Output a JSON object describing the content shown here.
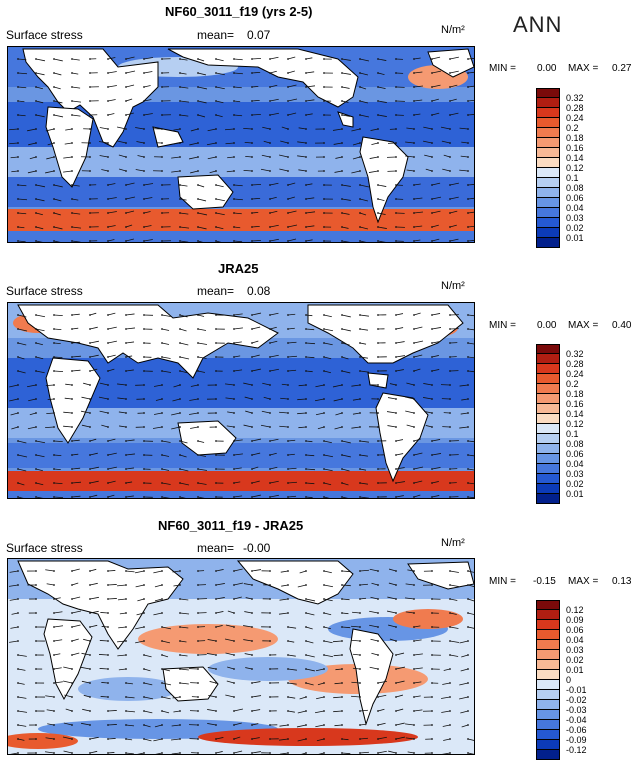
{
  "season": "ANN",
  "panels": [
    {
      "title": "NF60_3011_f19 (yrs 2-5)",
      "variable": "Surface stress",
      "mean_label": "mean=",
      "mean_value": "0.07",
      "units": "N/m²",
      "min_label": "MIN =",
      "min_value": "0.00",
      "max_label": "MAX =",
      "max_value": "0.27",
      "colorbar_ticks": [
        "0.32",
        "0.28",
        "0.24",
        "0.2",
        "0.18",
        "0.16",
        "0.14",
        "0.12",
        "0.1",
        "0.08",
        "0.06",
        "0.04",
        "0.03",
        "0.02",
        "0.01"
      ]
    },
    {
      "title": "JRA25",
      "variable": "Surface stress",
      "mean_label": "mean=",
      "mean_value": "0.08",
      "units": "N/m²",
      "min_label": "MIN =",
      "min_value": "0.00",
      "max_label": "MAX =",
      "max_value": "0.40",
      "colorbar_ticks": [
        "0.32",
        "0.28",
        "0.24",
        "0.2",
        "0.18",
        "0.16",
        "0.14",
        "0.12",
        "0.1",
        "0.08",
        "0.06",
        "0.04",
        "0.03",
        "0.02",
        "0.01"
      ]
    },
    {
      "title": "NF60_3011_f19 - JRA25",
      "variable": "Surface stress",
      "mean_label": "mean=",
      "mean_value": "-0.00",
      "units": "N/m²",
      "min_label": "MIN =",
      "min_value": "-0.15",
      "max_label": "MAX =",
      "max_value": "0.13",
      "colorbar_ticks": [
        "0.12",
        "0.09",
        "0.06",
        "0.04",
        "0.03",
        "0.02",
        "0.01",
        "0",
        "-0.01",
        "-0.02",
        "-0.03",
        "-0.04",
        "-0.06",
        "-0.09",
        "-0.12"
      ]
    }
  ],
  "colors": {
    "colorbar": [
      "#7a0a0a",
      "#b01e12",
      "#d8381d",
      "#e85a2e",
      "#f07b4f",
      "#f59a72",
      "#f8b996",
      "#fbdcc2",
      "#dbe8f8",
      "#b6cff2",
      "#8fb3ec",
      "#6795e5",
      "#4677dd",
      "#2559d2",
      "#0c3bb8",
      "#02208c"
    ],
    "land": "#ffffff",
    "coast": "#000000"
  }
}
